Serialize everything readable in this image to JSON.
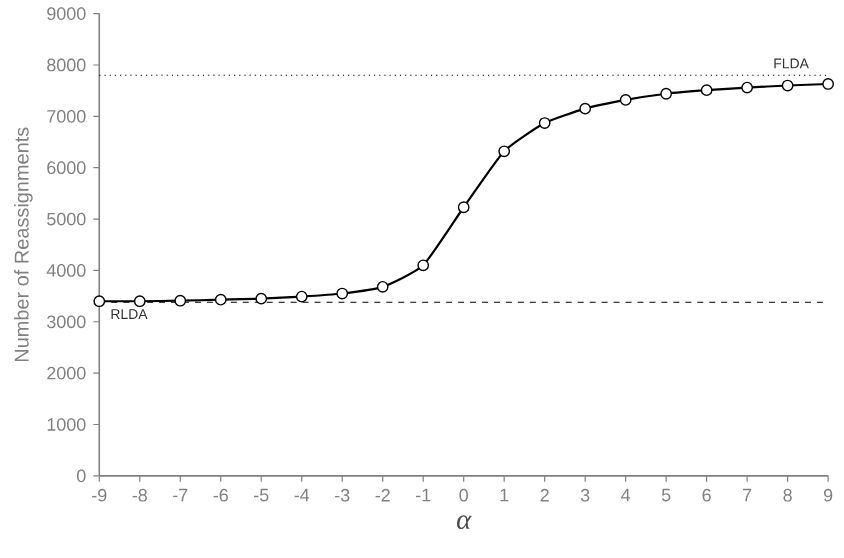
{
  "chart_data": {
    "type": "line",
    "xlabel": "α",
    "ylabel": "Number of Reassignments",
    "x": [
      -9,
      -8,
      -7,
      -6,
      -5,
      -4,
      -3,
      -2,
      -1,
      0,
      1,
      2,
      3,
      4,
      5,
      6,
      7,
      8,
      9
    ],
    "series": [
      {
        "color": "#000000",
        "values": [
          3400,
          3400,
          3410,
          3430,
          3450,
          3490,
          3550,
          3680,
          4100,
          5230,
          6320,
          6870,
          7150,
          7320,
          7440,
          7510,
          7560,
          7600,
          7630
        ]
      }
    ],
    "xlim": [
      -9,
      9
    ],
    "ylim": [
      0,
      9000
    ],
    "xticks": [
      -9,
      -8,
      -7,
      -6,
      -5,
      -4,
      -3,
      -2,
      -1,
      0,
      1,
      2,
      3,
      4,
      5,
      6,
      7,
      8,
      9
    ],
    "yticks": [
      0,
      1000,
      2000,
      3000,
      4000,
      5000,
      6000,
      7000,
      8000,
      9000
    ],
    "marker": "circle",
    "line_style": "solid",
    "ref_lines": [
      {
        "axis": "y",
        "value": 7800,
        "label": "FLDA",
        "line_style": "dotted"
      },
      {
        "axis": "y",
        "value": 3380,
        "label": "RLDA",
        "line_style": "dashed"
      }
    ]
  }
}
